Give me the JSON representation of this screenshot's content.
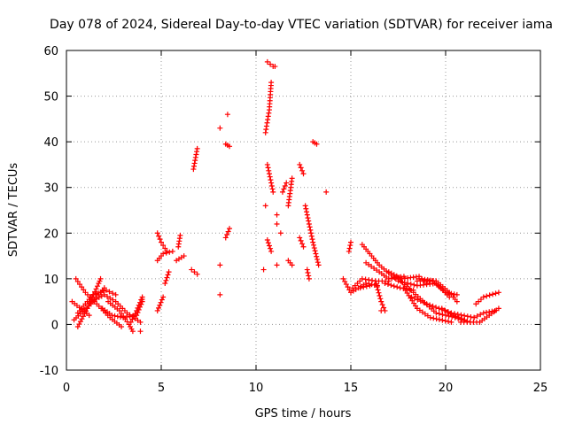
{
  "chart_data": {
    "type": "scatter",
    "title": "Day 078 of 2024, Sidereal Day-to-day VTEC variation (SDTVAR) for receiver iama",
    "xlabel": "GPS time / hours",
    "ylabel": "SDTVAR / TECUs",
    "xlim": [
      0,
      25
    ],
    "ylim": [
      -10,
      60
    ],
    "xticks": [
      "0",
      "5",
      "10",
      "15",
      "20",
      "25"
    ],
    "yticks": [
      "-10",
      "0",
      "10",
      "20",
      "30",
      "40",
      "50",
      "60"
    ],
    "grid": true,
    "marker": "+",
    "color": "#ff0000",
    "segments": [
      [
        [
          0.3,
          5.0
        ],
        [
          1.2,
          2.0
        ]
      ],
      [
        [
          0.4,
          1.0
        ],
        [
          1.3,
          4.5
        ],
        [
          2.0,
          8.0
        ]
      ],
      [
        [
          0.5,
          10.0
        ],
        [
          1.0,
          7.0
        ],
        [
          1.6,
          4.5
        ],
        [
          2.3,
          1.5
        ],
        [
          2.9,
          -0.5
        ]
      ],
      [
        [
          0.6,
          2.5
        ],
        [
          1.4,
          6.5
        ],
        [
          2.1,
          7.5
        ],
        [
          2.6,
          6.5
        ]
      ],
      [
        [
          0.6,
          -0.5
        ],
        [
          1.1,
          3.5
        ],
        [
          1.7,
          9.0
        ],
        [
          1.8,
          10.0
        ]
      ],
      [
        [
          1.3,
          5.0
        ],
        [
          2.0,
          6.5
        ],
        [
          2.6,
          5.0
        ],
        [
          3.2,
          2.5
        ],
        [
          3.9,
          0.5
        ]
      ],
      [
        [
          1.9,
          3.5
        ],
        [
          2.4,
          2.0
        ],
        [
          3.0,
          1.5
        ],
        [
          3.7,
          2.0
        ],
        [
          4.0,
          5.0
        ]
      ],
      [
        [
          2.2,
          5.0
        ],
        [
          2.8,
          3.0
        ],
        [
          3.3,
          0.0
        ],
        [
          3.5,
          -1.5
        ]
      ],
      [
        [
          3.4,
          0.5
        ],
        [
          3.7,
          3.0
        ],
        [
          4.0,
          6.0
        ]
      ],
      [
        [
          4.8,
          3.0
        ],
        [
          5.1,
          6.0
        ]
      ],
      [
        [
          4.8,
          14.0
        ],
        [
          5.1,
          15.5
        ],
        [
          5.6,
          16.0
        ]
      ],
      [
        [
          4.8,
          20.0
        ],
        [
          5.0,
          18.0
        ],
        [
          5.3,
          16.0
        ]
      ],
      [
        [
          5.2,
          9.0
        ],
        [
          5.4,
          11.5
        ]
      ],
      [
        [
          5.8,
          14.0
        ],
        [
          6.2,
          15.0
        ]
      ],
      [
        [
          5.9,
          17.0
        ],
        [
          6.0,
          19.5
        ]
      ],
      [
        [
          6.6,
          12.0
        ],
        [
          6.9,
          11.0
        ]
      ],
      [
        [
          6.7,
          34.0
        ],
        [
          6.9,
          38.5
        ]
      ],
      [
        [
          8.4,
          19.0
        ],
        [
          8.6,
          21.0
        ]
      ],
      [
        [
          8.4,
          39.5
        ],
        [
          8.6,
          39.0
        ]
      ],
      [
        [
          10.5,
          42.0
        ],
        [
          10.7,
          47.0
        ],
        [
          10.8,
          53.0
        ]
      ],
      [
        [
          10.6,
          57.5
        ],
        [
          10.9,
          56.5
        ]
      ],
      [
        [
          10.6,
          35.0
        ],
        [
          10.9,
          29.0
        ]
      ],
      [
        [
          10.6,
          18.5
        ],
        [
          10.8,
          16.0
        ]
      ],
      [
        [
          11.4,
          29.0
        ],
        [
          11.6,
          31.0
        ]
      ],
      [
        [
          11.7,
          26.0
        ],
        [
          11.9,
          32.0
        ]
      ],
      [
        [
          11.7,
          14.0
        ],
        [
          11.9,
          13.0
        ]
      ],
      [
        [
          12.3,
          35.0
        ],
        [
          12.5,
          33.0
        ]
      ],
      [
        [
          12.3,
          19.0
        ],
        [
          12.5,
          17.0
        ]
      ],
      [
        [
          12.6,
          26.0
        ],
        [
          13.0,
          18.0
        ],
        [
          13.3,
          13.0
        ]
      ],
      [
        [
          12.7,
          12.0
        ],
        [
          12.8,
          10.0
        ]
      ],
      [
        [
          13.0,
          40.0
        ],
        [
          13.2,
          39.5
        ]
      ],
      [
        [
          14.6,
          10.0
        ],
        [
          15.0,
          7.0
        ],
        [
          15.8,
          9.0
        ],
        [
          16.4,
          8.5
        ]
      ],
      [
        [
          14.9,
          16.0
        ],
        [
          15.0,
          18.0
        ]
      ],
      [
        [
          15.1,
          8.0
        ],
        [
          15.6,
          10.0
        ],
        [
          16.3,
          9.5
        ],
        [
          17.0,
          9.5
        ]
      ],
      [
        [
          15.5,
          8.0
        ],
        [
          16.0,
          8.5
        ]
      ],
      [
        [
          15.6,
          17.5
        ],
        [
          16.5,
          13.0
        ],
        [
          17.5,
          9.5
        ],
        [
          18.5,
          8.5
        ],
        [
          19.5,
          9.0
        ],
        [
          20.2,
          6.0
        ]
      ],
      [
        [
          15.8,
          13.5
        ],
        [
          16.5,
          11.5
        ],
        [
          17.0,
          10.0
        ],
        [
          17.8,
          10.5
        ]
      ],
      [
        [
          16.3,
          9.5
        ],
        [
          16.6,
          5.0
        ],
        [
          16.8,
          3.0
        ]
      ],
      [
        [
          16.8,
          9.0
        ],
        [
          17.6,
          8.0
        ],
        [
          18.3,
          7.5
        ]
      ],
      [
        [
          17.0,
          11.5
        ],
        [
          17.7,
          10.0
        ],
        [
          18.6,
          10.5
        ],
        [
          19.0,
          9.0
        ]
      ],
      [
        [
          17.5,
          10.0
        ],
        [
          18.3,
          7.0
        ],
        [
          19.5,
          2.5
        ],
        [
          20.5,
          1.5
        ],
        [
          21.3,
          0.5
        ]
      ],
      [
        [
          17.8,
          8.0
        ],
        [
          18.5,
          3.5
        ],
        [
          19.2,
          1.5
        ],
        [
          20.3,
          0.5
        ]
      ],
      [
        [
          18.2,
          6.0
        ],
        [
          19.0,
          4.5
        ],
        [
          20.3,
          2.5
        ],
        [
          21.5,
          1.5
        ]
      ],
      [
        [
          18.5,
          9.5
        ],
        [
          19.3,
          9.5
        ],
        [
          20.0,
          7.0
        ],
        [
          20.6,
          6.5
        ]
      ],
      [
        [
          18.6,
          10.0
        ],
        [
          19.5,
          9.5
        ],
        [
          20.2,
          7.0
        ],
        [
          20.6,
          5.0
        ]
      ],
      [
        [
          19.8,
          3.5
        ],
        [
          20.4,
          2.0
        ],
        [
          21.0,
          1.0
        ]
      ],
      [
        [
          20.8,
          0.5
        ],
        [
          21.8,
          0.5
        ],
        [
          22.8,
          3.5
        ]
      ],
      [
        [
          21.5,
          1.5
        ],
        [
          22.0,
          2.5
        ],
        [
          22.6,
          3.0
        ]
      ],
      [
        [
          21.6,
          4.5
        ],
        [
          22.0,
          6.0
        ],
        [
          22.8,
          7.0
        ]
      ]
    ],
    "singles": [
      [
        3.9,
        -1.5
      ],
      [
        4.0,
        5.5
      ],
      [
        8.1,
        43.0
      ],
      [
        8.1,
        13.0
      ],
      [
        8.1,
        6.5
      ],
      [
        8.5,
        46.0
      ],
      [
        10.4,
        12.0
      ],
      [
        10.5,
        26.0
      ],
      [
        11.1,
        24.0
      ],
      [
        11.1,
        22.0
      ],
      [
        11.1,
        13.0
      ],
      [
        11.0,
        56.5
      ],
      [
        11.3,
        20.0
      ],
      [
        13.7,
        29.0
      ],
      [
        16.6,
        3.0
      ]
    ]
  }
}
